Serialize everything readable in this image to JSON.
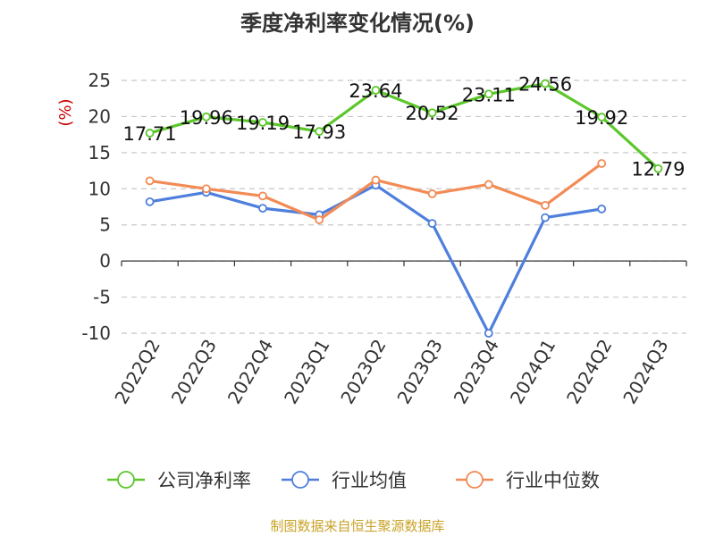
{
  "chart_data": {
    "type": "line",
    "title": "季度净利率变化情况(%)",
    "unit_label": "(%)",
    "categories": [
      "2022Q2",
      "2022Q3",
      "2022Q4",
      "2023Q1",
      "2023Q2",
      "2023Q3",
      "2023Q4",
      "2024Q1",
      "2024Q2",
      "2024Q3"
    ],
    "ylim": [
      -10,
      25
    ],
    "yticks": [
      -10,
      -5,
      0,
      5,
      10,
      15,
      20,
      25
    ],
    "grid": true,
    "legend_position": "bottom",
    "series": [
      {
        "name": "公司净利率",
        "color": "#5cc72b",
        "values": [
          17.71,
          19.96,
          19.19,
          17.93,
          23.64,
          20.52,
          23.11,
          24.56,
          19.92,
          12.79
        ],
        "labels": [
          "17.71",
          "19.96",
          "19.19",
          "17.93",
          "23.64",
          "20.52",
          "23.11",
          "24.56",
          "19.92",
          "12.79"
        ]
      },
      {
        "name": "行业均值",
        "color": "#4e7fdc",
        "values": [
          8.2,
          9.5,
          7.3,
          6.4,
          10.5,
          5.2,
          -10.0,
          6.0,
          7.2,
          null
        ]
      },
      {
        "name": "行业中位数",
        "color": "#f28b55",
        "values": [
          11.1,
          10.0,
          9.0,
          5.7,
          11.2,
          9.3,
          10.6,
          7.7,
          13.5,
          null
        ]
      }
    ],
    "source": "制图数据来自恒生聚源数据库"
  }
}
